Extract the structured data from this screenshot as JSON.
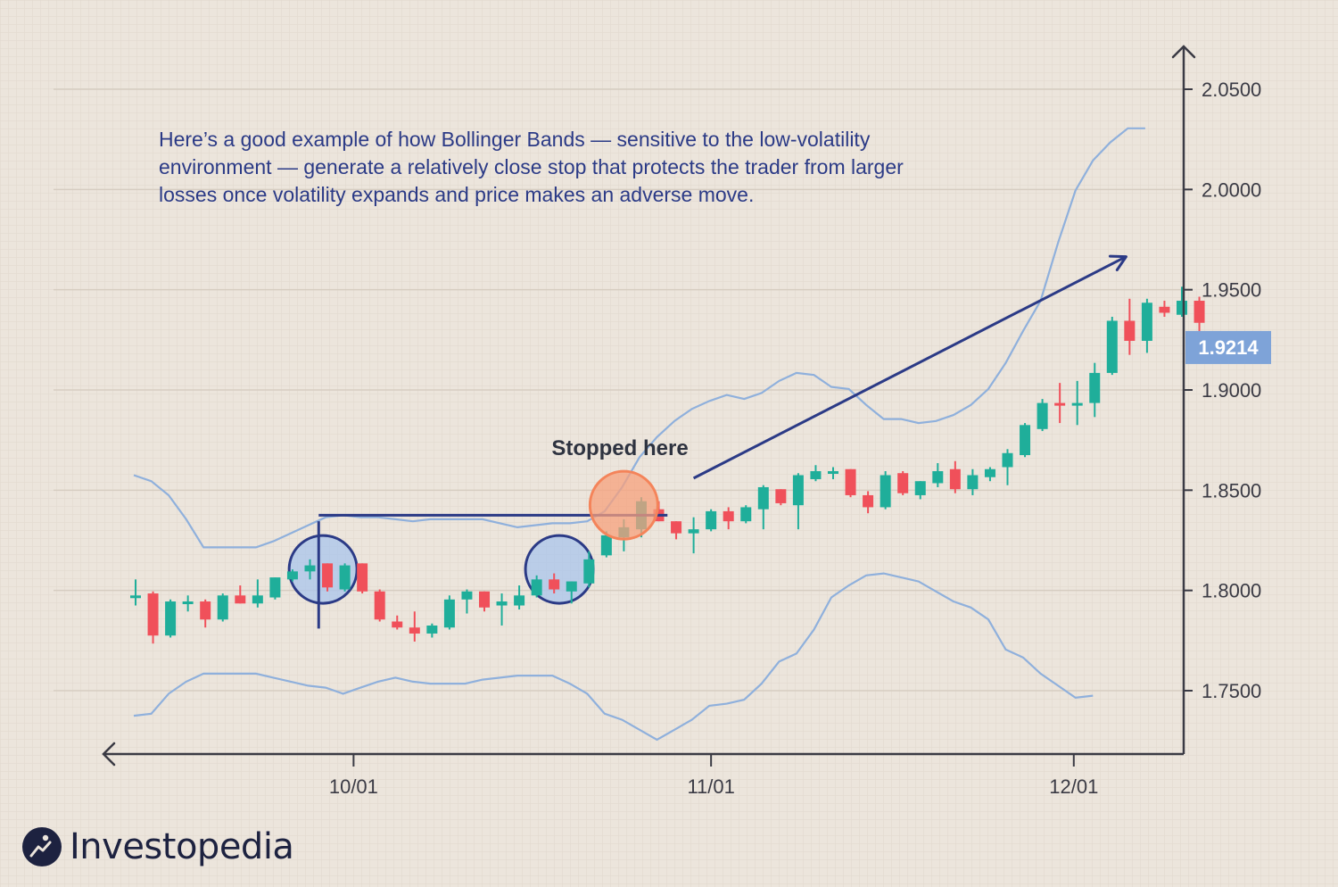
{
  "caption": "Here’s a good example of how Bollinger Bands — sensitive to the low-volatility environment — generate a relatively close stop that protects the trader from larger losses once volatility expands and price makes an adverse move.",
  "brand": {
    "name": "Investopedia",
    "icon": "investopedia-logo-icon"
  },
  "colors": {
    "background": "#ece5dc",
    "up": "#1fae9a",
    "down": "#f0505a",
    "band": "#8fb0dc",
    "annotation": "#2b3a86",
    "axis": "#3a3a44",
    "price_badge": "#7ea3d8",
    "stop_circle": "#f7a07c",
    "highlight_circle": "#a9c4ec"
  },
  "chart_data": {
    "type": "candlestick",
    "title": "",
    "xlabel": "",
    "ylabel": "",
    "ylim": [
      1.72,
      2.0625
    ],
    "y_ticks": [
      "1.7500",
      "1.8000",
      "1.8500",
      "1.9000",
      "1.9500",
      "2.0000",
      "2.0500"
    ],
    "x_ticks": [
      {
        "label": "10/01",
        "index": 12.5
      },
      {
        "label": "11/01",
        "index": 33
      },
      {
        "label": "12/01",
        "index": 53.8
      }
    ],
    "grid": true,
    "current_price": "1.9214",
    "annotations": {
      "stop_label": "Stopped here",
      "stop_level": 1.8375,
      "stop_line_start_index": 10.5,
      "stop_line_end_index": 30.5,
      "entry_marker_index": 10.5,
      "entry_marker_range": [
        1.781,
        1.8345
      ],
      "trend_arrow": {
        "from_index": 32,
        "from_price": 1.856,
        "to_index": 56.8,
        "to_price": 1.9665
      },
      "stop_circle": {
        "center_index": 28,
        "center_price": 1.8425
      },
      "highlight_circles": [
        {
          "center_index": 10.75,
          "center_price": 1.8105
        },
        {
          "center_index": 24.3,
          "center_price": 1.8105
        }
      ]
    },
    "candles": [
      {
        "o": 1.7965,
        "h": 1.8055,
        "l": 1.7925,
        "c": 1.7975
      },
      {
        "o": 1.7985,
        "h": 1.7995,
        "l": 1.7735,
        "c": 1.7775
      },
      {
        "o": 1.7775,
        "h": 1.7955,
        "l": 1.7765,
        "c": 1.7945
      },
      {
        "o": 1.7935,
        "h": 1.7975,
        "l": 1.7895,
        "c": 1.7945
      },
      {
        "o": 1.7945,
        "h": 1.7955,
        "l": 1.7815,
        "c": 1.7855
      },
      {
        "o": 1.7855,
        "h": 1.7985,
        "l": 1.7845,
        "c": 1.7975
      },
      {
        "o": 1.7975,
        "h": 1.8025,
        "l": 1.7935,
        "c": 1.7935
      },
      {
        "o": 1.7935,
        "h": 1.8055,
        "l": 1.7915,
        "c": 1.7975
      },
      {
        "o": 1.7965,
        "h": 1.8065,
        "l": 1.7955,
        "c": 1.8065
      },
      {
        "o": 1.8055,
        "h": 1.8105,
        "l": 1.8045,
        "c": 1.8095
      },
      {
        "o": 1.8095,
        "h": 1.8155,
        "l": 1.8055,
        "c": 1.8125
      },
      {
        "o": 1.8135,
        "h": 1.8135,
        "l": 1.7995,
        "c": 1.8015
      },
      {
        "o": 1.8005,
        "h": 1.8135,
        "l": 1.7995,
        "c": 1.8125
      },
      {
        "o": 1.8135,
        "h": 1.8135,
        "l": 1.7985,
        "c": 1.7995
      },
      {
        "o": 1.7995,
        "h": 1.8005,
        "l": 1.7845,
        "c": 1.7855
      },
      {
        "o": 1.7845,
        "h": 1.7875,
        "l": 1.7805,
        "c": 1.7815
      },
      {
        "o": 1.7815,
        "h": 1.7895,
        "l": 1.7745,
        "c": 1.7785
      },
      {
        "o": 1.7785,
        "h": 1.7835,
        "l": 1.7765,
        "c": 1.7825
      },
      {
        "o": 1.7815,
        "h": 1.7975,
        "l": 1.7805,
        "c": 1.7955
      },
      {
        "o": 1.7955,
        "h": 1.8005,
        "l": 1.7885,
        "c": 1.7995
      },
      {
        "o": 1.7995,
        "h": 1.7995,
        "l": 1.7895,
        "c": 1.7915
      },
      {
        "o": 1.7925,
        "h": 1.7985,
        "l": 1.7825,
        "c": 1.7945
      },
      {
        "o": 1.7925,
        "h": 1.8025,
        "l": 1.7905,
        "c": 1.7975
      },
      {
        "o": 1.7975,
        "h": 1.8075,
        "l": 1.7965,
        "c": 1.8055
      },
      {
        "o": 1.8055,
        "h": 1.8085,
        "l": 1.7985,
        "c": 1.8005
      },
      {
        "o": 1.7995,
        "h": 1.8045,
        "l": 1.7935,
        "c": 1.8045
      },
      {
        "o": 1.8035,
        "h": 1.8195,
        "l": 1.8015,
        "c": 1.8155
      },
      {
        "o": 1.8175,
        "h": 1.8295,
        "l": 1.8165,
        "c": 1.8275
      },
      {
        "o": 1.8265,
        "h": 1.8355,
        "l": 1.8195,
        "c": 1.8315
      },
      {
        "o": 1.8305,
        "h": 1.8465,
        "l": 1.8265,
        "c": 1.8445
      },
      {
        "o": 1.8405,
        "h": 1.8445,
        "l": 1.8345,
        "c": 1.8345
      },
      {
        "o": 1.8345,
        "h": 1.8345,
        "l": 1.8255,
        "c": 1.8285
      },
      {
        "o": 1.8285,
        "h": 1.8365,
        "l": 1.8185,
        "c": 1.8305
      },
      {
        "o": 1.8305,
        "h": 1.8405,
        "l": 1.8295,
        "c": 1.8395
      },
      {
        "o": 1.8395,
        "h": 1.8415,
        "l": 1.8305,
        "c": 1.8345
      },
      {
        "o": 1.8345,
        "h": 1.8425,
        "l": 1.8335,
        "c": 1.8415
      },
      {
        "o": 1.8405,
        "h": 1.8525,
        "l": 1.8305,
        "c": 1.8515
      },
      {
        "o": 1.8505,
        "h": 1.8505,
        "l": 1.8425,
        "c": 1.8435
      },
      {
        "o": 1.8425,
        "h": 1.8585,
        "l": 1.8305,
        "c": 1.8575
      },
      {
        "o": 1.8555,
        "h": 1.8625,
        "l": 1.8545,
        "c": 1.8595
      },
      {
        "o": 1.8595,
        "h": 1.8615,
        "l": 1.8555,
        "c": 1.8595
      },
      {
        "o": 1.8605,
        "h": 1.8605,
        "l": 1.8465,
        "c": 1.8475
      },
      {
        "o": 1.8475,
        "h": 1.8495,
        "l": 1.8385,
        "c": 1.8415
      },
      {
        "o": 1.8415,
        "h": 1.8595,
        "l": 1.8405,
        "c": 1.8575
      },
      {
        "o": 1.8585,
        "h": 1.8595,
        "l": 1.8475,
        "c": 1.8485
      },
      {
        "o": 1.8475,
        "h": 1.8545,
        "l": 1.8455,
        "c": 1.8545
      },
      {
        "o": 1.8535,
        "h": 1.8635,
        "l": 1.8515,
        "c": 1.8595
      },
      {
        "o": 1.8605,
        "h": 1.8645,
        "l": 1.8485,
        "c": 1.8505
      },
      {
        "o": 1.8505,
        "h": 1.8605,
        "l": 1.8475,
        "c": 1.8575
      },
      {
        "o": 1.8565,
        "h": 1.8615,
        "l": 1.8545,
        "c": 1.8605
      },
      {
        "o": 1.8615,
        "h": 1.8705,
        "l": 1.8525,
        "c": 1.8685
      },
      {
        "o": 1.8675,
        "h": 1.8835,
        "l": 1.8665,
        "c": 1.8825
      },
      {
        "o": 1.8805,
        "h": 1.8955,
        "l": 1.8795,
        "c": 1.8935
      },
      {
        "o": 1.8935,
        "h": 1.9035,
        "l": 1.8835,
        "c": 1.8925
      },
      {
        "o": 1.8935,
        "h": 1.9045,
        "l": 1.8825,
        "c": 1.8935
      },
      {
        "o": 1.8935,
        "h": 1.9135,
        "l": 1.8865,
        "c": 1.9085
      },
      {
        "o": 1.9085,
        "h": 1.9365,
        "l": 1.9075,
        "c": 1.9345
      },
      {
        "o": 1.9345,
        "h": 1.9455,
        "l": 1.9175,
        "c": 1.9245
      },
      {
        "o": 1.9245,
        "h": 1.9455,
        "l": 1.9185,
        "c": 1.9435
      },
      {
        "o": 1.9415,
        "h": 1.9445,
        "l": 1.9365,
        "c": 1.9385
      },
      {
        "o": 1.9375,
        "h": 1.9515,
        "l": 1.9365,
        "c": 1.9445
      },
      {
        "o": 1.9445,
        "h": 1.9465,
        "l": 1.9165,
        "c": 1.9335
      }
    ],
    "upper_band": [
      1.8575,
      1.8545,
      1.8475,
      1.8355,
      1.8215,
      1.8215,
      1.8215,
      1.8215,
      1.8245,
      1.8285,
      1.8325,
      1.8365,
      1.8375,
      1.8365,
      1.8365,
      1.8355,
      1.8345,
      1.8355,
      1.8355,
      1.8355,
      1.8355,
      1.8335,
      1.8315,
      1.8325,
      1.8335,
      1.8335,
      1.8345,
      1.8395,
      1.8515,
      1.8665,
      1.8765,
      1.8845,
      1.8905,
      1.8945,
      1.8975,
      1.8955,
      1.8985,
      1.9045,
      1.9085,
      1.9075,
      1.9015,
      1.9005,
      1.8925,
      1.8855,
      1.8855,
      1.8835,
      1.8845,
      1.8875,
      1.8925,
      1.9005,
      1.9135,
      1.9295,
      1.9445,
      1.9735,
      1.9995,
      2.0145,
      2.0235,
      2.0305,
      2.0305
    ],
    "lower_band": [
      1.7375,
      1.7385,
      1.7485,
      1.7545,
      1.7585,
      1.7585,
      1.7585,
      1.7585,
      1.7565,
      1.7545,
      1.7525,
      1.7515,
      1.7485,
      1.7515,
      1.7545,
      1.7565,
      1.7545,
      1.7535,
      1.7535,
      1.7535,
      1.7555,
      1.7565,
      1.7575,
      1.7575,
      1.7575,
      1.7535,
      1.7485,
      1.7385,
      1.7355,
      1.7305,
      1.7255,
      1.7305,
      1.7355,
      1.7425,
      1.7435,
      1.7455,
      1.7535,
      1.7645,
      1.7685,
      1.7805,
      1.7965,
      1.8025,
      1.8075,
      1.8085,
      1.8065,
      1.8045,
      1.7995,
      1.7945,
      1.7915,
      1.7855,
      1.7705,
      1.7665,
      1.7585,
      1.7525,
      1.7465,
      1.7475
    ]
  }
}
